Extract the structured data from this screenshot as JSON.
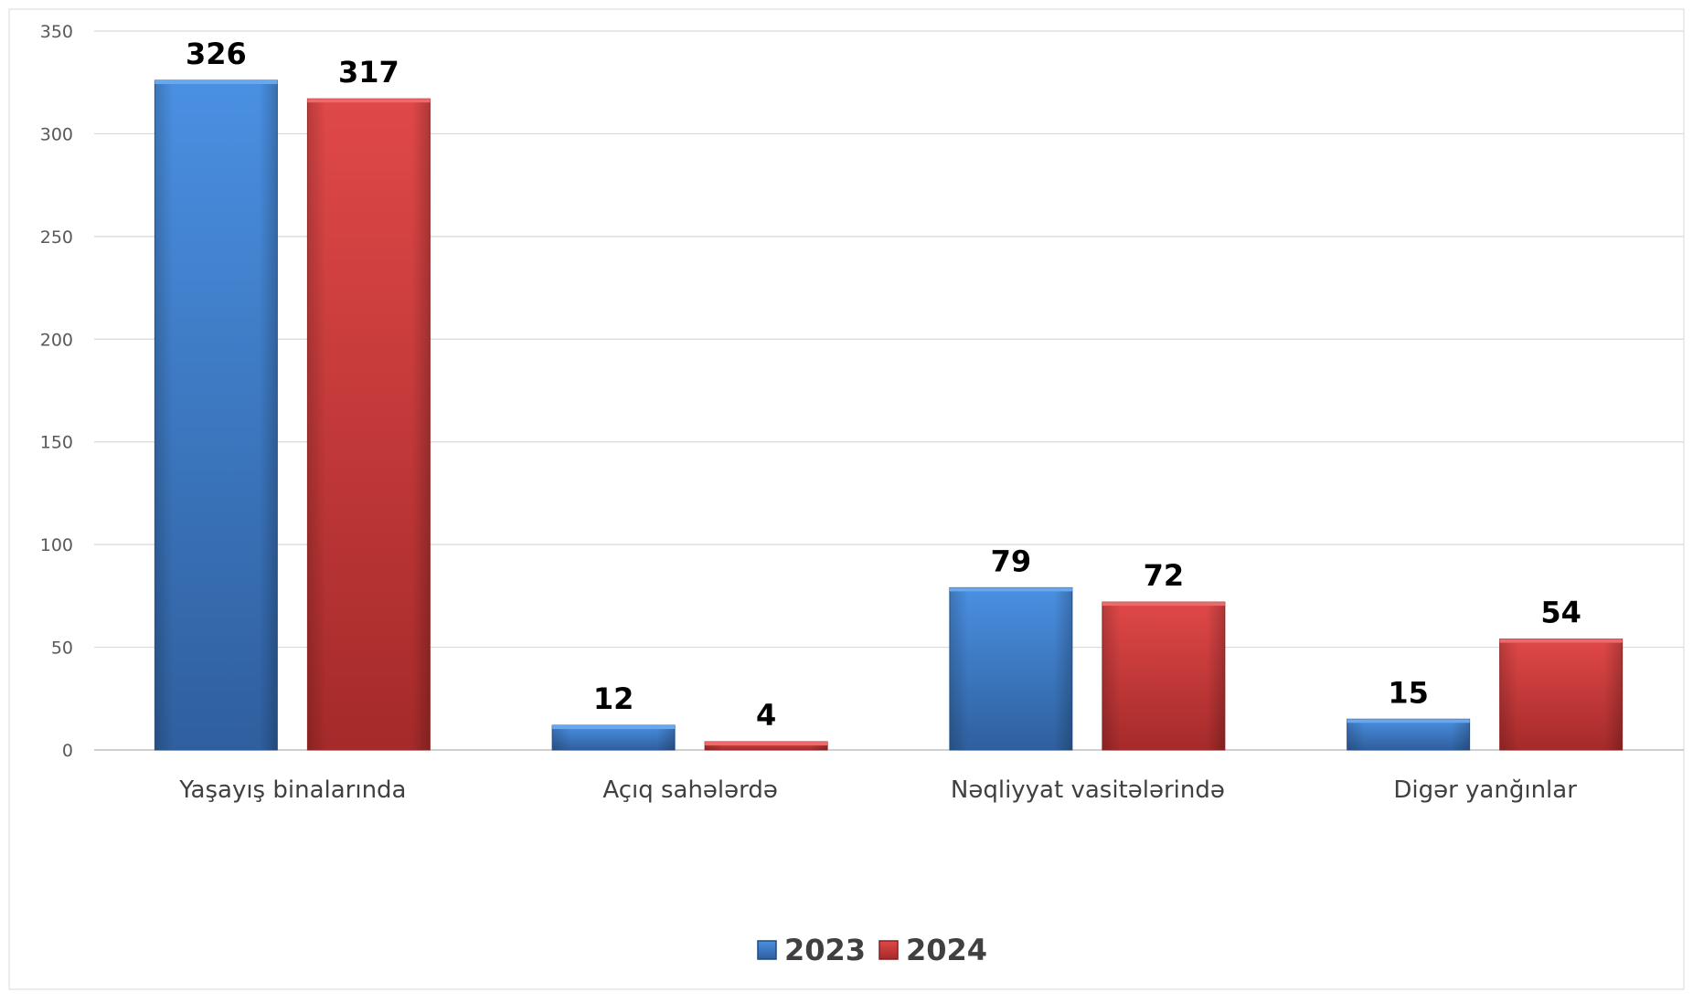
{
  "chart_data": {
    "type": "bar",
    "title": "",
    "xlabel": "",
    "ylabel": "",
    "categories": [
      "Yaşayış binalarında",
      "Açıq sahələrdə",
      "Nəqliyyat vasitələrində",
      "Digər yanğınlar"
    ],
    "series": [
      {
        "name": "2023",
        "values": [
          326,
          12,
          79,
          15
        ],
        "color": "#3b7dd4"
      },
      {
        "name": "2024",
        "values": [
          317,
          4,
          72,
          54
        ],
        "color": "#d43c3c"
      }
    ],
    "ylim": [
      0,
      350
    ],
    "yticks": [
      "0",
      "50",
      "100",
      "150",
      "200",
      "250",
      "300",
      "350"
    ],
    "data_labels": [
      [
        "326",
        "12",
        "79",
        "15"
      ],
      [
        "317",
        "4",
        "72",
        "54"
      ]
    ],
    "grid": true,
    "legend_position": "bottom"
  }
}
